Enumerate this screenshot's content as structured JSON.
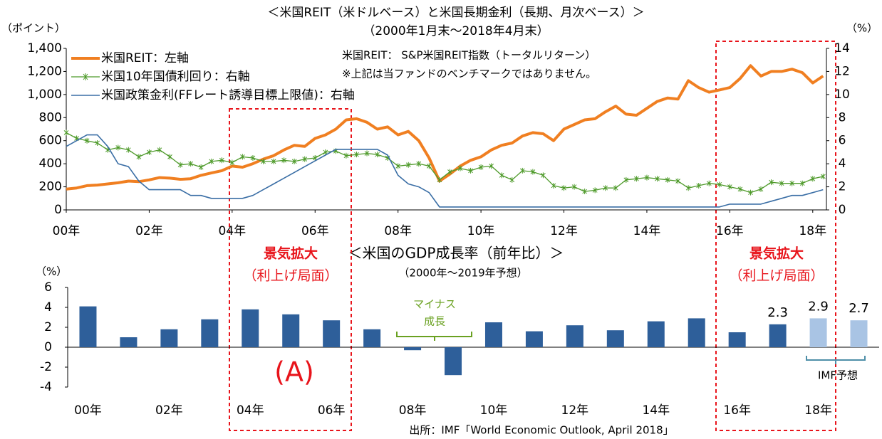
{
  "chart_data": [
    {
      "type": "line",
      "title": "＜米国REIT（米ドルベース）と米国長期金利（長期、月次ベース）＞",
      "subtitle": "（2000年1月末～2018年4月末）",
      "y_label": "（ポイント）",
      "y2_label": "（%）",
      "notes": [
        "米国REIT： S&P米国REIT指数（トータルリターン）",
        "※上記は当ファンドのベンチマークではありません。"
      ],
      "xlim": [
        2000,
        2018.33
      ],
      "xticks": [
        {
          "value": 2000,
          "label": "00年"
        },
        {
          "value": 2002,
          "label": "02年"
        },
        {
          "value": 2004,
          "label": "04年"
        },
        {
          "value": 2006,
          "label": "06年"
        },
        {
          "value": 2008,
          "label": "08年"
        },
        {
          "value": 2010,
          "label": "10年"
        },
        {
          "value": 2012,
          "label": "12年"
        },
        {
          "value": 2014,
          "label": "14年"
        },
        {
          "value": 2016,
          "label": "16年"
        },
        {
          "value": 2018,
          "label": "18年"
        }
      ],
      "ylim": [
        0,
        1400
      ],
      "yticks": [
        0,
        200,
        400,
        600,
        800,
        {
          "value": 1000,
          "label": "1,000"
        },
        {
          "value": 1200,
          "label": "1,200"
        },
        {
          "value": 1400,
          "label": "1,400"
        }
      ],
      "y2lim": [
        0,
        14
      ],
      "y2ticks": [
        0,
        2,
        4,
        6,
        8,
        10,
        12,
        14
      ],
      "legend": "upper left",
      "x": [
        2000,
        2000.25,
        2000.5,
        2000.75,
        2001,
        2001.25,
        2001.5,
        2001.75,
        2002,
        2002.25,
        2002.5,
        2002.75,
        2003,
        2003.25,
        2003.5,
        2003.75,
        2004,
        2004.25,
        2004.5,
        2004.75,
        2005,
        2005.25,
        2005.5,
        2005.75,
        2006,
        2006.25,
        2006.5,
        2006.75,
        2007,
        2007.25,
        2007.5,
        2007.75,
        2008,
        2008.25,
        2008.5,
        2008.75,
        2009,
        2009.25,
        2009.5,
        2009.75,
        2010,
        2010.25,
        2010.5,
        2010.75,
        2011,
        2011.25,
        2011.5,
        2011.75,
        2012,
        2012.25,
        2012.5,
        2012.75,
        2013,
        2013.25,
        2013.5,
        2013.75,
        2014,
        2014.25,
        2014.5,
        2014.75,
        2015,
        2015.25,
        2015.5,
        2015.75,
        2016,
        2016.25,
        2016.5,
        2016.75,
        2017,
        2017.25,
        2017.5,
        2017.75,
        2018,
        2018.25
      ],
      "series": [
        {
          "name": "米国REIT：左軸",
          "color": "#f07f21",
          "values": [
            180,
            190,
            210,
            215,
            225,
            235,
            250,
            245,
            260,
            280,
            275,
            265,
            270,
            300,
            320,
            340,
            380,
            370,
            400,
            440,
            470,
            520,
            560,
            550,
            620,
            650,
            700,
            780,
            790,
            760,
            700,
            720,
            650,
            680,
            600,
            450,
            250,
            310,
            380,
            430,
            460,
            520,
            560,
            580,
            640,
            670,
            660,
            600,
            700,
            740,
            780,
            790,
            850,
            900,
            830,
            820,
            880,
            940,
            970,
            960,
            1120,
            1060,
            1020,
            1040,
            1060,
            1140,
            1250,
            1160,
            1200,
            1200,
            1220,
            1190,
            1100,
            1160
          ]
        },
        {
          "name": "米国10年国債利回り：右軸",
          "color": "#4e9a2a",
          "axis": "y2",
          "values": [
            6.7,
            6.2,
            6.0,
            5.8,
            5.2,
            5.4,
            5.2,
            4.6,
            5.0,
            5.2,
            4.6,
            3.9,
            4.0,
            3.7,
            4.2,
            4.3,
            4.1,
            4.6,
            4.5,
            4.2,
            4.2,
            4.3,
            4.2,
            4.4,
            4.5,
            5.0,
            5.1,
            4.7,
            4.8,
            4.9,
            4.8,
            4.5,
            3.8,
            3.9,
            4.0,
            3.8,
            2.6,
            3.3,
            3.6,
            3.4,
            3.7,
            3.8,
            3.0,
            2.6,
            3.4,
            3.3,
            3.0,
            2.1,
            1.9,
            2.0,
            1.6,
            1.7,
            1.9,
            1.9,
            2.6,
            2.7,
            2.8,
            2.7,
            2.6,
            2.5,
            1.9,
            2.1,
            2.3,
            2.2,
            2.0,
            1.8,
            1.5,
            1.8,
            2.4,
            2.3,
            2.3,
            2.3,
            2.7,
            2.9
          ]
        },
        {
          "name": "米国政策金利(FFレート誘導目標上限値)：右軸",
          "color": "#3a6ea5",
          "axis": "y2",
          "values": [
            5.5,
            6.0,
            6.5,
            6.5,
            5.5,
            4.0,
            3.75,
            2.5,
            1.75,
            1.75,
            1.75,
            1.75,
            1.25,
            1.25,
            1.0,
            1.0,
            1.0,
            1.0,
            1.25,
            1.75,
            2.25,
            2.75,
            3.25,
            3.75,
            4.25,
            4.75,
            5.25,
            5.25,
            5.25,
            5.25,
            5.25,
            4.75,
            3.0,
            2.25,
            2.0,
            1.5,
            0.25,
            0.25,
            0.25,
            0.25,
            0.25,
            0.25,
            0.25,
            0.25,
            0.25,
            0.25,
            0.25,
            0.25,
            0.25,
            0.25,
            0.25,
            0.25,
            0.25,
            0.25,
            0.25,
            0.25,
            0.25,
            0.25,
            0.25,
            0.25,
            0.25,
            0.25,
            0.25,
            0.25,
            0.5,
            0.5,
            0.5,
            0.5,
            0.75,
            1.0,
            1.25,
            1.25,
            1.5,
            1.75
          ]
        }
      ]
    },
    {
      "type": "bar",
      "title": "＜米国のGDP成長率（前年比）＞",
      "subtitle": "（2000年～2019年予想）",
      "y_label": "（%）",
      "source": "出所：IMF「World Economic Outlook, April 2018」",
      "annotations": [
        "景気拡大",
        "（利上げ局面）",
        "景気拡大",
        "（利上げ局面）",
        "(A)",
        "マイナス",
        "成長",
        "IMF予想"
      ],
      "ylim": [
        -4,
        6
      ],
      "yticks": [
        -4,
        -2,
        0,
        2,
        4,
        6
      ],
      "categories": [
        "00年",
        null,
        "02年",
        null,
        "04年",
        null,
        "06年",
        null,
        "08年",
        null,
        "10年",
        null,
        "12年",
        null,
        "14年",
        null,
        "16年",
        null,
        "18年",
        null
      ],
      "values": [
        4.1,
        1.0,
        1.8,
        2.8,
        3.8,
        3.3,
        2.7,
        1.8,
        -0.3,
        -2.8,
        2.5,
        1.6,
        2.2,
        1.7,
        2.6,
        2.9,
        1.5,
        2.3,
        2.9,
        2.7
      ],
      "value_labels": [
        null,
        null,
        null,
        null,
        null,
        null,
        null,
        null,
        null,
        null,
        null,
        null,
        null,
        null,
        null,
        null,
        null,
        "2.3",
        "2.9",
        "2.7"
      ],
      "colors": [
        "#2e5f9a",
        "#2e5f9a",
        "#2e5f9a",
        "#2e5f9a",
        "#2e5f9a",
        "#2e5f9a",
        "#2e5f9a",
        "#2e5f9a",
        "#2e5f9a",
        "#2e5f9a",
        "#2e5f9a",
        "#2e5f9a",
        "#2e5f9a",
        "#2e5f9a",
        "#2e5f9a",
        "#2e5f9a",
        "#2e5f9a",
        "#2e5f9a",
        "#a9c4e4",
        "#a9c4e4"
      ]
    }
  ]
}
